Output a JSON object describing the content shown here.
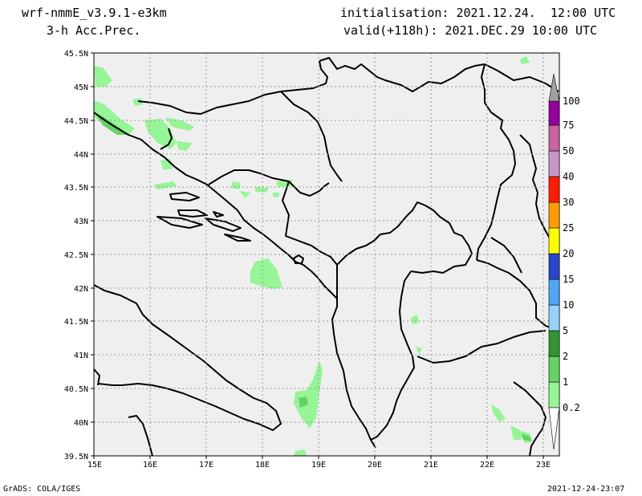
{
  "header": {
    "model": "wrf-nmmE_v3.9.1-e3km",
    "field": "3-h Acc.Prec.",
    "init": "initialisation: 2021.12.24.  12:00 UTC",
    "valid": "valid(+118h): 2021.DEC.29 10:00 UTC"
  },
  "footer": {
    "credit": "GrADS: COLA/IGES",
    "timestamp": "2021-12-24-23:07"
  },
  "map": {
    "background": "#efefef",
    "lat_labels": [
      "45.5N",
      "45N",
      "44.5N",
      "44N",
      "43.5N",
      "43N",
      "42.5N",
      "42N",
      "41.5N",
      "41N",
      "40.5N",
      "40N",
      "39.5N"
    ],
    "lon_labels": [
      "15E",
      "16E",
      "17E",
      "18E",
      "19E",
      "20E",
      "21E",
      "22E",
      "23E"
    ]
  },
  "colorbar": {
    "levels": [
      "0.2",
      "1",
      "2",
      "5",
      "10",
      "15",
      "20",
      "25",
      "30",
      "40",
      "50",
      "75",
      "100"
    ],
    "colors": [
      "#96f596",
      "#64d264",
      "#329632",
      "#96d2fa",
      "#50a5f5",
      "#2846c8",
      "#ffff00",
      "#ff9b00",
      "#ff1e00",
      "#c896c8",
      "#c864a0",
      "#9600a0",
      "#a0a0a0"
    ]
  }
}
